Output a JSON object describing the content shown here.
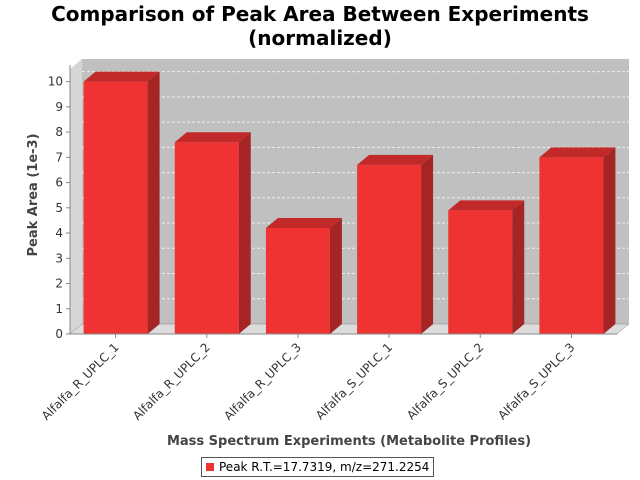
{
  "chart_data": {
    "type": "bar",
    "title_line1": "Comparison of Peak Area Between Experiments",
    "title_line2": "(normalized)",
    "xlabel": "Mass Spectrum Experiments (Metabolite Profiles)",
    "ylabel": "Peak Area (1e-3)",
    "categories": [
      "Alfalfa_R_UPLC_1",
      "Alfalfa_R_UPLC_2",
      "Alfalfa_R_UPLC_3",
      "Alfalfa_S_UPLC_1",
      "Alfalfa_S_UPLC_2",
      "Alfalfa_S_UPLC_3"
    ],
    "series": [
      {
        "name": "Peak R.T.=17.7319, m/z=271.2254",
        "values": [
          10.0,
          7.6,
          4.2,
          6.7,
          4.9,
          7.0
        ],
        "color": "#ef3333"
      }
    ],
    "ylim": [
      0,
      10.5
    ],
    "yticks": [
      0,
      1,
      2,
      3,
      4,
      5,
      6,
      7,
      8,
      9,
      10
    ],
    "grid": true,
    "legend_position": "bottom",
    "plot_background": "#c0c0c0",
    "three_d": true
  }
}
